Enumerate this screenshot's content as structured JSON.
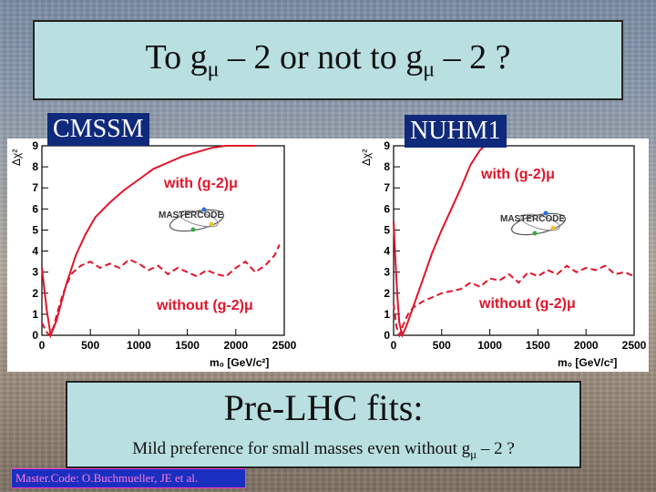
{
  "title": {
    "before": "To g",
    "sub1": "μ",
    "middle": " – 2 or not to g",
    "sub2": "μ",
    "after": " – 2 ?"
  },
  "tags": {
    "cmssm": "CMSSM",
    "nuhm1": "NUHM1"
  },
  "bottom": {
    "heading": "Pre-LHC fits:",
    "sub_before": "Mild preference for small masses even without g",
    "sub_mu": "μ",
    "sub_after": " – 2 ?"
  },
  "credit": "Master.Code: O.Buchmueller, JE et al.",
  "logo_text": "MASTERCODE",
  "colors": {
    "curve": "#e0152a",
    "tag_bg": "#0f2a7a",
    "box_bg": "#b9dfe0",
    "credit_bg": "#1a2fc0",
    "credit_text": "#ff7be0"
  },
  "chart_data": [
    {
      "type": "line",
      "panel": "CMSSM",
      "xlabel": "m₀ [GeV/c²]",
      "ylabel": "Δχ²",
      "xlim": [
        0,
        2500
      ],
      "ylim": [
        0,
        9
      ],
      "xticks": [
        0,
        500,
        1000,
        1500,
        2000,
        2500
      ],
      "yticks": [
        0,
        1,
        2,
        3,
        4,
        5,
        6,
        7,
        8,
        9
      ],
      "series": [
        {
          "name": "with (g-2)μ",
          "style": "solid",
          "x": [
            0,
            50,
            90,
            150,
            250,
            350,
            450,
            550,
            700,
            850,
            1000,
            1150,
            1300,
            1450,
            1600,
            1750,
            1900,
            2050,
            2200
          ],
          "y": [
            3.2,
            1.2,
            0.0,
            0.7,
            2.4,
            3.8,
            4.8,
            5.6,
            6.3,
            6.9,
            7.4,
            7.9,
            8.2,
            8.5,
            8.7,
            8.9,
            9.0,
            9.0,
            9.0
          ]
        },
        {
          "name": "without (g-2)μ",
          "style": "dashed",
          "x": [
            0,
            40,
            80,
            120,
            160,
            220,
            300,
            400,
            500,
            600,
            700,
            800,
            900,
            1000,
            1100,
            1200,
            1300,
            1400,
            1500,
            1600,
            1700,
            1800,
            1900,
            2000,
            2100,
            2200,
            2300,
            2400,
            2450
          ],
          "y": [
            0.6,
            0.2,
            0.0,
            0.4,
            1.1,
            2.0,
            2.9,
            3.3,
            3.5,
            3.2,
            3.4,
            3.2,
            3.6,
            3.4,
            3.1,
            3.3,
            2.9,
            3.2,
            3.0,
            2.8,
            3.1,
            2.9,
            2.8,
            3.2,
            3.5,
            3.0,
            3.3,
            3.8,
            4.3
          ]
        }
      ]
    },
    {
      "type": "line",
      "panel": "NUHM1",
      "xlabel": "m₀ [GeV/c²]",
      "ylabel": "Δχ²",
      "xlim": [
        0,
        2500
      ],
      "ylim": [
        0,
        9
      ],
      "xticks": [
        0,
        500,
        1000,
        1500,
        2000,
        2500
      ],
      "yticks": [
        0,
        1,
        2,
        3,
        4,
        5,
        6,
        7,
        8,
        9
      ],
      "series": [
        {
          "name": "with (g-2)μ",
          "style": "solid",
          "x": [
            0,
            20,
            40,
            60,
            90,
            130,
            200,
            300,
            400,
            500,
            600,
            700,
            800,
            900,
            950
          ],
          "y": [
            5.4,
            3.5,
            1.8,
            0.6,
            0.0,
            0.4,
            1.3,
            2.6,
            3.9,
            5.0,
            6.0,
            7.0,
            8.1,
            8.8,
            9.0
          ]
        },
        {
          "name": "without (g-2)μ",
          "style": "dashed",
          "x": [
            0,
            30,
            60,
            100,
            150,
            200,
            300,
            400,
            500,
            600,
            700,
            800,
            900,
            1000,
            1100,
            1200,
            1300,
            1400,
            1500,
            1600,
            1700,
            1800,
            1900,
            2000,
            2100,
            2200,
            2300,
            2400,
            2500
          ],
          "y": [
            1.5,
            0.4,
            0.0,
            0.5,
            1.0,
            1.3,
            1.6,
            1.8,
            2.0,
            2.1,
            2.2,
            2.5,
            2.3,
            2.7,
            2.6,
            2.9,
            2.5,
            3.0,
            2.8,
            3.1,
            2.9,
            3.3,
            3.0,
            3.2,
            3.1,
            3.3,
            2.9,
            3.0,
            2.8
          ]
        }
      ]
    }
  ]
}
